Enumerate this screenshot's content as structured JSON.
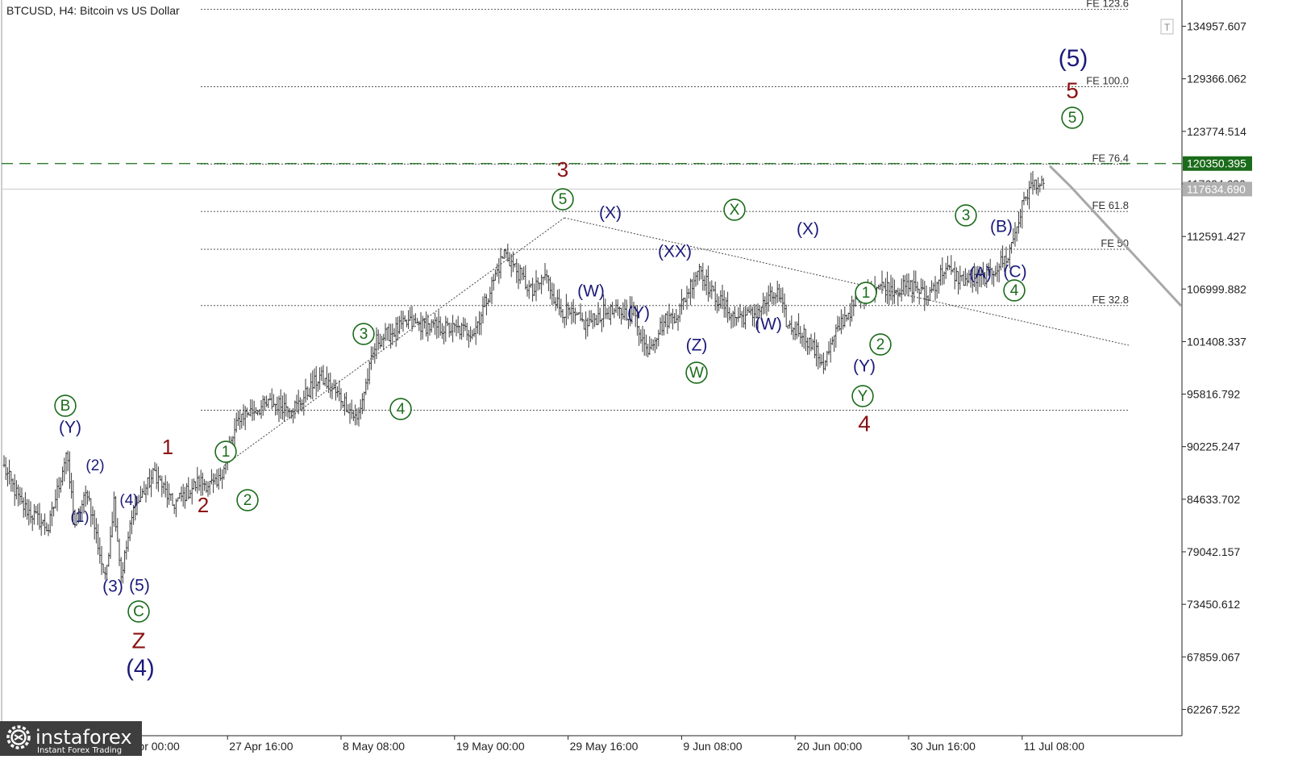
{
  "chart_data": {
    "type": "ohlc",
    "title": "BTCUSD, H4:  Bitcoin vs US Dollar",
    "ylim": [
      59472,
      137753
    ],
    "y_ticks": [
      "134957.607",
      "129366.062",
      "123774.514",
      "120350.395",
      "117634.690",
      "112591.427",
      "106999.882",
      "101408.337",
      "95816.792",
      "90225.247",
      "84633.702",
      "79042.157",
      "73450.612",
      "67859.067",
      "62267.522"
    ],
    "y_tick_values": [
      134957.607,
      129366.062,
      123774.514,
      118182.972,
      112591.427,
      106999.882,
      101408.337,
      95816.792,
      90225.247,
      84633.702,
      79042.157,
      73450.612,
      67859.067,
      62267.522
    ],
    "price_labels": {
      "level": {
        "text": "120350.395",
        "value": 120350.395,
        "color": "#1a6b1a"
      },
      "bid": {
        "text": "117634.690",
        "value": 117634.69,
        "color": "#b0b0b0"
      }
    },
    "x_labels": [
      {
        "text": "7 Apr 08:00",
        "index": 4
      },
      {
        "text": "17 Apr 00:00",
        "index": 62
      },
      {
        "text": "27 Apr 16:00",
        "index": 126
      },
      {
        "text": "8 May 08:00",
        "index": 190
      },
      {
        "text": "19 May 00:00",
        "index": 254
      },
      {
        "text": "29 May 16:00",
        "index": 318
      },
      {
        "text": "9 Jun 08:00",
        "index": 382
      },
      {
        "text": "20 Jun 00:00",
        "index": 446
      },
      {
        "text": "30 Jun 16:00",
        "index": 510
      },
      {
        "text": "11 Jul 08:00",
        "index": 574
      }
    ],
    "fib_levels": [
      {
        "label": "FE 123.6",
        "value": 136760
      },
      {
        "label": "FE 100.0",
        "value": 128530
      },
      {
        "label": "FE 76.4",
        "value": 120300
      },
      {
        "label": "FE 61.8",
        "value": 115250
      },
      {
        "label": "FE 50",
        "value": 111230
      },
      {
        "label": "FE 32.8",
        "value": 105240
      },
      {
        "label": "",
        "value": 94110
      }
    ],
    "forecast_path": [
      [
        1302,
        120100
      ],
      [
        1328,
        117900
      ],
      [
        1465,
        105200
      ]
    ],
    "anchors": [
      {
        "i": 0,
        "v": 88000
      },
      {
        "i": 10,
        "v": 84000
      },
      {
        "i": 25,
        "v": 81500
      },
      {
        "i": 35,
        "v": 89500
      },
      {
        "i": 40,
        "v": 82000
      },
      {
        "i": 47,
        "v": 85500
      },
      {
        "i": 57,
        "v": 76000
      },
      {
        "i": 62,
        "v": 84500
      },
      {
        "i": 66,
        "v": 76500
      },
      {
        "i": 73,
        "v": 83500
      },
      {
        "i": 85,
        "v": 87500
      },
      {
        "i": 95,
        "v": 84000
      },
      {
        "i": 110,
        "v": 86500
      },
      {
        "i": 120,
        "v": 86000
      },
      {
        "i": 133,
        "v": 93500
      },
      {
        "i": 150,
        "v": 94800
      },
      {
        "i": 165,
        "v": 94500
      },
      {
        "i": 178,
        "v": 97700
      },
      {
        "i": 192,
        "v": 95000
      },
      {
        "i": 199,
        "v": 93000
      },
      {
        "i": 210,
        "v": 101500
      },
      {
        "i": 228,
        "v": 103400
      },
      {
        "i": 240,
        "v": 103000
      },
      {
        "i": 265,
        "v": 102500
      },
      {
        "i": 282,
        "v": 110900
      },
      {
        "i": 298,
        "v": 106500
      },
      {
        "i": 305,
        "v": 108500
      },
      {
        "i": 313,
        "v": 105000
      },
      {
        "i": 328,
        "v": 103200
      },
      {
        "i": 338,
        "v": 104500
      },
      {
        "i": 355,
        "v": 104500
      },
      {
        "i": 362,
        "v": 100500
      },
      {
        "i": 372,
        "v": 103500
      },
      {
        "i": 380,
        "v": 104500
      },
      {
        "i": 392,
        "v": 109500
      },
      {
        "i": 398,
        "v": 106800
      },
      {
        "i": 412,
        "v": 104000
      },
      {
        "i": 422,
        "v": 104200
      },
      {
        "i": 432,
        "v": 106000
      },
      {
        "i": 436,
        "v": 106500
      },
      {
        "i": 442,
        "v": 103000
      },
      {
        "i": 450,
        "v": 102500
      },
      {
        "i": 462,
        "v": 99000
      },
      {
        "i": 472,
        "v": 103500
      },
      {
        "i": 488,
        "v": 107500
      },
      {
        "i": 502,
        "v": 107000
      },
      {
        "i": 514,
        "v": 107300
      },
      {
        "i": 520,
        "v": 106000
      },
      {
        "i": 530,
        "v": 109200
      },
      {
        "i": 540,
        "v": 108000
      },
      {
        "i": 546,
        "v": 107900
      },
      {
        "i": 555,
        "v": 108500
      },
      {
        "i": 566,
        "v": 110500
      },
      {
        "i": 576,
        "v": 117000
      },
      {
        "i": 582,
        "v": 118500
      },
      {
        "i": 586,
        "v": 117600
      }
    ],
    "wave_labels": [
      {
        "text": "(Y)",
        "x": 87,
        "y": 530,
        "color": "#1a1a7a",
        "size": 21
      },
      {
        "text": "B",
        "x": 81,
        "y": 503,
        "color": "#1a6b1a",
        "size": 19,
        "circle": true
      },
      {
        "text": "(2)",
        "x": 118,
        "y": 577,
        "color": "#1a1a7a",
        "size": 19
      },
      {
        "text": "(1)",
        "x": 99,
        "y": 641,
        "color": "#1a1a7a",
        "size": 19
      },
      {
        "text": "(4)",
        "x": 160,
        "y": 620,
        "color": "#1a1a7a",
        "size": 19
      },
      {
        "text": "(3)",
        "x": 140,
        "y": 727,
        "color": "#1a1a7a",
        "size": 21
      },
      {
        "text": "(5)",
        "x": 173,
        "y": 726,
        "color": "#1a1a7a",
        "size": 21
      },
      {
        "text": "C",
        "x": 172,
        "y": 758,
        "color": "#1a6b1a",
        "size": 19,
        "circle": true
      },
      {
        "text": "Z",
        "x": 172,
        "y": 795,
        "color": "#8b1212",
        "size": 28
      },
      {
        "text": "(4)",
        "x": 174,
        "y": 829,
        "color": "#1a1a7a",
        "size": 29
      },
      {
        "text": "1",
        "x": 208,
        "y": 555,
        "color": "#8b1212",
        "size": 26
      },
      {
        "text": "2",
        "x": 252,
        "y": 627,
        "color": "#8b1212",
        "size": 26
      },
      {
        "text": "1",
        "x": 280,
        "y": 560,
        "color": "#1a6b1a",
        "size": 19,
        "circle": true
      },
      {
        "text": "2",
        "x": 307,
        "y": 620,
        "color": "#1a6b1a",
        "size": 19,
        "circle": true
      },
      {
        "text": "3",
        "x": 451,
        "y": 414,
        "color": "#1a6b1a",
        "size": 19,
        "circle": true
      },
      {
        "text": "4",
        "x": 497,
        "y": 507,
        "color": "#1a6b1a",
        "size": 19,
        "circle": true
      },
      {
        "text": "3",
        "x": 698,
        "y": 211,
        "color": "#8b1212",
        "size": 26
      },
      {
        "text": "5",
        "x": 698,
        "y": 247,
        "color": "#1a6b1a",
        "size": 19,
        "circle": true
      },
      {
        "text": "(X)",
        "x": 757,
        "y": 264,
        "color": "#1a1a7a",
        "size": 21
      },
      {
        "text": "(W)",
        "x": 733,
        "y": 361,
        "color": "#1a1a7a",
        "size": 21
      },
      {
        "text": "(Y)",
        "x": 792,
        "y": 388,
        "color": "#1a1a7a",
        "size": 21
      },
      {
        "text": "(XX)",
        "x": 837,
        "y": 312,
        "color": "#1a1a7a",
        "size": 21
      },
      {
        "text": "(Z)",
        "x": 864,
        "y": 428,
        "color": "#1a1a7a",
        "size": 21
      },
      {
        "text": "W",
        "x": 864,
        "y": 462,
        "color": "#1a6b1a",
        "size": 19,
        "circle": true
      },
      {
        "text": "X",
        "x": 911,
        "y": 260,
        "color": "#1a6b1a",
        "size": 19,
        "circle": true
      },
      {
        "text": "(X)",
        "x": 1002,
        "y": 284,
        "color": "#1a1a7a",
        "size": 21
      },
      {
        "text": "(W)",
        "x": 953,
        "y": 402,
        "color": "#1a1a7a",
        "size": 21
      },
      {
        "text": "1",
        "x": 1074,
        "y": 363,
        "color": "#1a6b1a",
        "size": 19,
        "circle": true
      },
      {
        "text": "2",
        "x": 1092,
        "y": 427,
        "color": "#1a6b1a",
        "size": 19,
        "circle": true
      },
      {
        "text": "(Y)",
        "x": 1072,
        "y": 454,
        "color": "#1a1a7a",
        "size": 21
      },
      {
        "text": "Y",
        "x": 1070,
        "y": 491,
        "color": "#1a6b1a",
        "size": 19,
        "circle": true
      },
      {
        "text": "4",
        "x": 1072,
        "y": 526,
        "color": "#8b1212",
        "size": 28
      },
      {
        "text": "3",
        "x": 1198,
        "y": 267,
        "color": "#1a6b1a",
        "size": 19,
        "circle": true
      },
      {
        "text": "(B)",
        "x": 1242,
        "y": 281,
        "color": "#1a1a7a",
        "size": 21
      },
      {
        "text": "(A)",
        "x": 1216,
        "y": 339,
        "color": "#1a1a7a",
        "size": 21
      },
      {
        "text": "(C)",
        "x": 1259,
        "y": 337,
        "color": "#1a1a7a",
        "size": 21
      },
      {
        "text": "4",
        "x": 1258,
        "y": 360,
        "color": "#1a6b1a",
        "size": 19,
        "circle": true
      },
      {
        "text": "(5)",
        "x": 1331,
        "y": 73,
        "color": "#1a1a7a",
        "size": 30
      },
      {
        "text": "5",
        "x": 1330,
        "y": 113,
        "color": "#8b1212",
        "size": 28
      },
      {
        "text": "5",
        "x": 1330,
        "y": 146,
        "color": "#1a6b1a",
        "size": 19,
        "circle": true
      }
    ]
  },
  "branding": {
    "name": "instaforex",
    "tagline": "Instant Forex Trading"
  }
}
